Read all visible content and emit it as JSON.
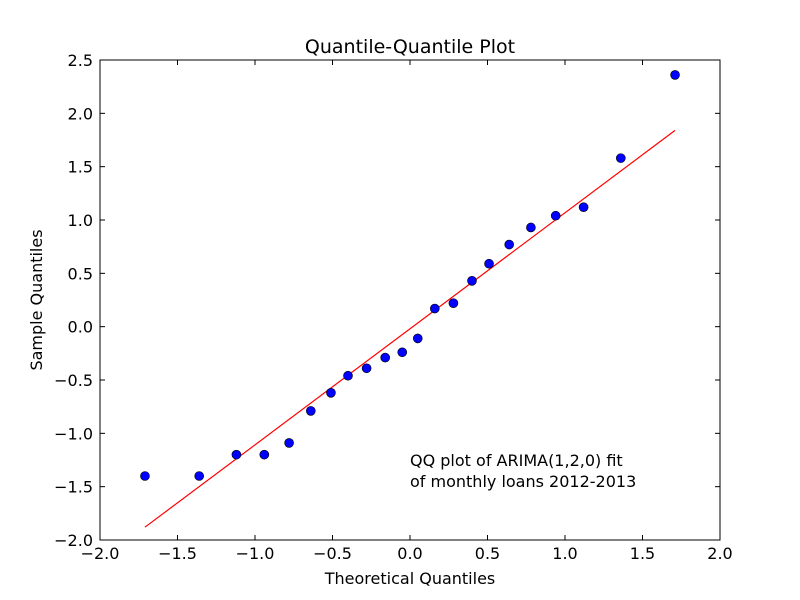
{
  "chart_data": {
    "type": "scatter",
    "title": "Quantile-Quantile Plot",
    "xlabel": "Theoretical Quantiles",
    "ylabel": "Sample Quantiles",
    "xlim": [
      -2.0,
      2.0
    ],
    "ylim": [
      -2.0,
      2.5
    ],
    "xticks": [
      -2.0,
      -1.5,
      -1.0,
      -0.5,
      0.0,
      0.5,
      1.0,
      1.5,
      2.0
    ],
    "xtick_labels": [
      "−2.0",
      "−1.5",
      "−1.0",
      "−0.5",
      "0.0",
      "0.5",
      "1.0",
      "1.5",
      "2.0"
    ],
    "yticks": [
      -2.0,
      -1.5,
      -1.0,
      -0.5,
      0.0,
      0.5,
      1.0,
      1.5,
      2.0,
      2.5
    ],
    "ytick_labels": [
      "−2.0",
      "−1.5",
      "−1.0",
      "−0.5",
      "0.0",
      "0.5",
      "1.0",
      "1.5",
      "2.0",
      "2.5"
    ],
    "grid": false,
    "series": [
      {
        "kind": "points",
        "color": "#0000ff",
        "x": [
          -1.71,
          -1.36,
          -1.12,
          -0.94,
          -0.78,
          -0.64,
          -0.51,
          -0.4,
          -0.28,
          -0.16,
          -0.05,
          0.05,
          0.16,
          0.28,
          0.4,
          0.51,
          0.64,
          0.78,
          0.94,
          1.12,
          1.36,
          1.71
        ],
        "y": [
          -1.4,
          -1.4,
          -1.2,
          -1.2,
          -1.09,
          -0.79,
          -0.62,
          -0.46,
          -0.39,
          -0.29,
          -0.24,
          -0.11,
          0.17,
          0.22,
          0.43,
          0.59,
          0.77,
          0.93,
          1.04,
          1.12,
          1.58,
          2.36
        ]
      },
      {
        "kind": "line",
        "color": "#ff0000",
        "x": [
          -1.71,
          1.71
        ],
        "y": [
          -1.88,
          1.84
        ]
      }
    ],
    "annotation": [
      "QQ plot of ARIMA(1,2,0) fit",
      "of monthly loans 2012-2013"
    ]
  }
}
